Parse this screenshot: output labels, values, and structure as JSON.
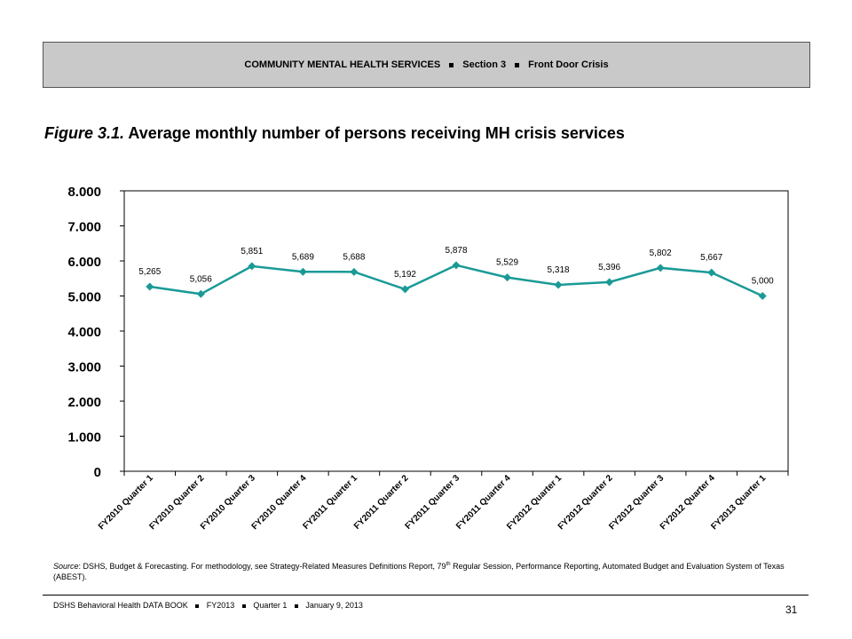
{
  "header": {
    "section": "COMMUNITY MENTAL HEALTH SERVICES",
    "part": "Section 3",
    "topic": "Front Door Crisis"
  },
  "figure": {
    "number": "Figure 3.1.",
    "title": "Average monthly number of persons receiving MH crisis services"
  },
  "chart_data": {
    "type": "line",
    "title": "",
    "xlabel": "",
    "ylabel": "",
    "categories": [
      "FY2010 Quarter 1",
      "FY2010 Quarter 2",
      "FY2010 Quarter 3",
      "FY2010 Quarter 4",
      "FY2011 Quarter 1",
      "FY2011 Quarter 2",
      "FY2011 Quarter 3",
      "FY2011 Quarter 4",
      "FY2012 Quarter 1",
      "FY2012 Quarter 2",
      "FY2012 Quarter 3",
      "FY2012 Quarter 4",
      "FY2013 Quarter 1"
    ],
    "series": [
      {
        "values": [
          5265,
          5056,
          5851,
          5689,
          5688,
          5192,
          5878,
          5529,
          5318,
          5396,
          5802,
          5667,
          5000
        ],
        "labels": [
          "5,265",
          "5,056",
          "5,851",
          "5,689",
          "5,688",
          "5,192",
          "5,878",
          "5,529",
          "5,318",
          "5,396",
          "5,802",
          "5,667",
          "5,000"
        ],
        "color": "#1a9a96"
      }
    ],
    "ylim": [
      0,
      8000
    ],
    "yticks": [
      0,
      1000,
      2000,
      3000,
      4000,
      5000,
      6000,
      7000,
      8000
    ],
    "ytick_labels": [
      "0",
      "1.000",
      "2.000",
      "3.000",
      "4.000",
      "5.000",
      "6.000",
      "7.000",
      "8.000"
    ],
    "grid": false,
    "legend": "none"
  },
  "source": {
    "label": "Source",
    "text_before": ": DSHS, Budget & Forecasting. For methodology, see Strategy-Related Measures Definitions Report, 79",
    "superscript": "th",
    "text_after": " Regular Session, Performance Reporting, Automated Budget and Evaluation System of Texas (ABEST)."
  },
  "footer": {
    "book": "DSHS Behavioral Health DATA BOOK",
    "year": "FY2013",
    "quarter": "Quarter 1",
    "date": "January  9, 2013",
    "page": "31"
  }
}
